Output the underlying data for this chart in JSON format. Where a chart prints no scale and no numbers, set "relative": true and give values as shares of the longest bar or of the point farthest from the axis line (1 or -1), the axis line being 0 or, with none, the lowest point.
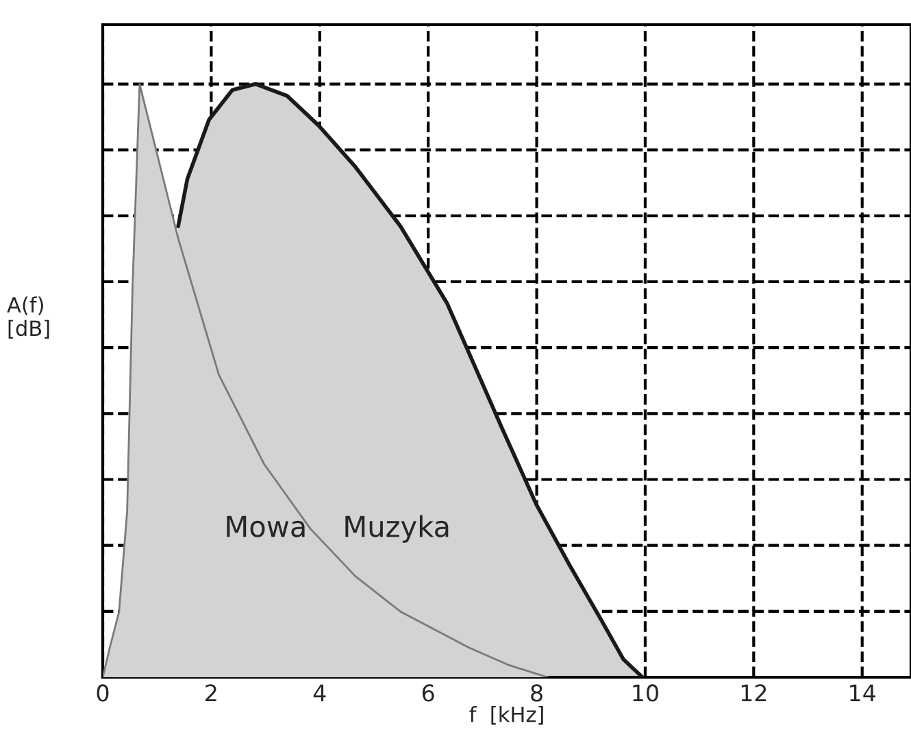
{
  "chart_data": {
    "type": "area",
    "relative": true,
    "xlabel": "f  [kHz]",
    "ylabel": "A(f)\n[dB]",
    "xlim": [
      0,
      14.9
    ],
    "xticks": [
      0,
      2,
      4,
      6,
      8,
      10,
      12,
      14
    ],
    "grid": true,
    "line_style": "dashed",
    "tick_labels": "x",
    "series": [
      {
        "name": "Muzyka",
        "color": "#d3d3d3",
        "x": [
          1.39,
          1.56,
          1.96,
          2.39,
          2.82,
          3.4,
          3.98,
          4.66,
          5.49,
          6.35,
          7.36,
          8.0,
          8.6,
          9.2,
          9.6,
          9.95
        ],
        "values": [
          0.76,
          0.84,
          0.94,
          0.99,
          1,
          0.98,
          0.93,
          0.86,
          0.76,
          0.63,
          0.42,
          0.29,
          0.19,
          0.095,
          0.03,
          0
        ]
      },
      {
        "name": "Mowa",
        "color": "#d3d3d3",
        "x": [
          0,
          0.13,
          0.3,
          0.45,
          0.55,
          0.68,
          1.39,
          2.14,
          2.97,
          3.83,
          4.66,
          5.5,
          6.75,
          7.5,
          8.2
        ],
        "values": [
          0,
          0.05,
          0.11,
          0.28,
          0.66,
          1,
          0.74,
          0.51,
          0.36,
          0.25,
          0.17,
          0.11,
          0.05,
          0.02,
          0
        ]
      }
    ]
  }
}
